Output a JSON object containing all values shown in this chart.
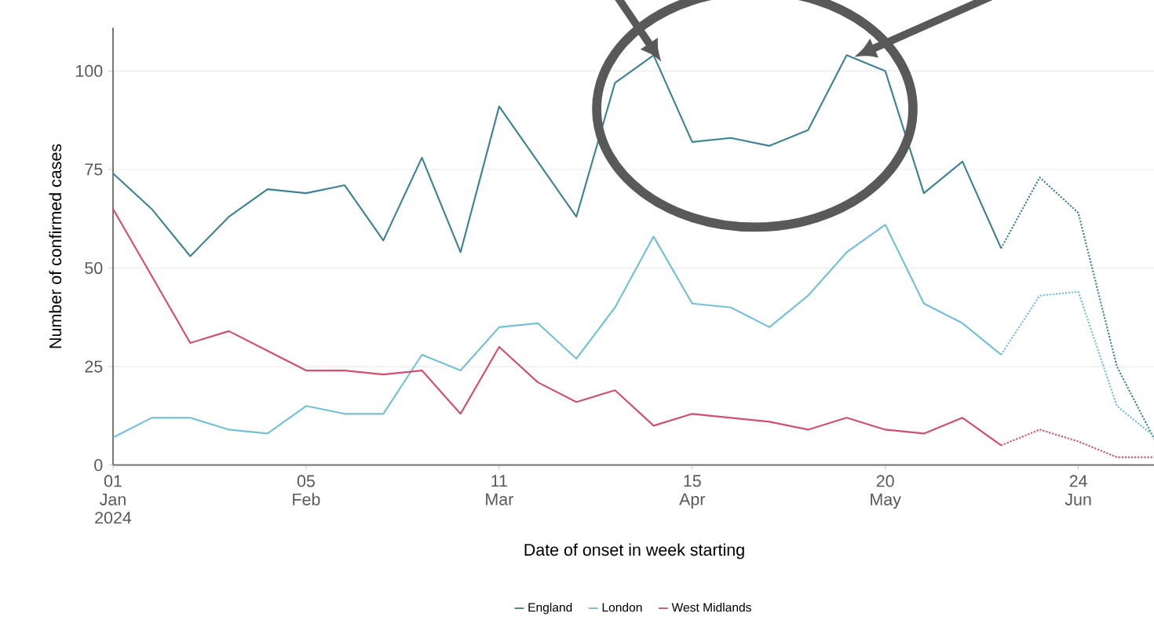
{
  "chart_data": {
    "type": "line",
    "xlabel": "Date of onset in week starting",
    "ylabel": "Number of confirmed cases",
    "x": [
      "2024-01-01",
      "2024-01-08",
      "2024-01-15",
      "2024-01-22",
      "2024-01-29",
      "2024-02-05",
      "2024-02-12",
      "2024-02-19",
      "2024-02-26",
      "2024-03-04",
      "2024-03-11",
      "2024-03-18",
      "2024-03-25",
      "2024-04-01",
      "2024-04-08",
      "2024-04-15",
      "2024-04-22",
      "2024-04-29",
      "2024-05-06",
      "2024-05-13",
      "2024-05-20",
      "2024-05-27",
      "2024-06-03",
      "2024-06-10",
      "2024-06-17",
      "2024-06-24",
      "2024-07-01",
      "2024-07-08"
    ],
    "series": [
      {
        "name": "England",
        "color": "#3f8393",
        "line_style": "solid",
        "values": [
          74,
          65,
          53,
          63,
          70,
          69,
          71,
          57,
          78,
          54,
          91,
          77,
          63,
          97,
          104,
          82,
          83,
          81,
          85,
          104,
          100,
          69,
          77,
          55,
          null,
          null,
          null,
          null
        ]
      },
      {
        "name": "London",
        "color": "#74c0d4",
        "line_style": "solid",
        "values": [
          7,
          12,
          12,
          9,
          8,
          15,
          13,
          13,
          28,
          24,
          35,
          36,
          27,
          40,
          58,
          41,
          40,
          35,
          43,
          54,
          61,
          41,
          36,
          28,
          null,
          null,
          null,
          null
        ]
      },
      {
        "name": "West Midlands",
        "color": "#d0506e",
        "line_style": "solid",
        "values": [
          65,
          48,
          31,
          34,
          29,
          24,
          24,
          23,
          24,
          13,
          30,
          21,
          16,
          19,
          10,
          13,
          12,
          11,
          9,
          12,
          9,
          8,
          12,
          5,
          null,
          null,
          null,
          null
        ]
      },
      {
        "color": "#3f8393",
        "line_style": "dotted",
        "values": [
          null,
          null,
          null,
          null,
          null,
          null,
          null,
          null,
          null,
          null,
          null,
          null,
          null,
          null,
          null,
          null,
          null,
          null,
          null,
          null,
          null,
          null,
          null,
          55,
          73,
          64,
          25,
          6
        ]
      },
      {
        "color": "#74c0d4",
        "line_style": "dotted",
        "values": [
          null,
          null,
          null,
          null,
          null,
          null,
          null,
          null,
          null,
          null,
          null,
          null,
          null,
          null,
          null,
          null,
          null,
          null,
          null,
          null,
          null,
          null,
          null,
          28,
          43,
          44,
          15,
          7
        ]
      },
      {
        "color": "#d0506e",
        "line_style": "dotted",
        "values": [
          null,
          null,
          null,
          null,
          null,
          null,
          null,
          null,
          null,
          null,
          null,
          null,
          null,
          null,
          null,
          null,
          null,
          null,
          null,
          null,
          null,
          null,
          null,
          5,
          9,
          6,
          2,
          2
        ]
      }
    ],
    "xlim": [
      "2024-01-01",
      "2024-07-08"
    ],
    "xticks": [
      {
        "value": "2024-01-01",
        "label": "01 Jan 2024"
      },
      {
        "value": "2024-02-05",
        "label": "05 Feb"
      },
      {
        "value": "2024-03-11",
        "label": "11 Mar"
      },
      {
        "value": "2024-04-15",
        "label": "15 Apr"
      },
      {
        "value": "2024-05-20",
        "label": "20 May"
      },
      {
        "value": "2024-06-24",
        "label": "24 Jun"
      }
    ],
    "ylim": [
      0,
      111
    ],
    "yticks": [
      0,
      25,
      50,
      75,
      100
    ],
    "grid": "y",
    "legend": "bottom",
    "marker": "none"
  }
}
